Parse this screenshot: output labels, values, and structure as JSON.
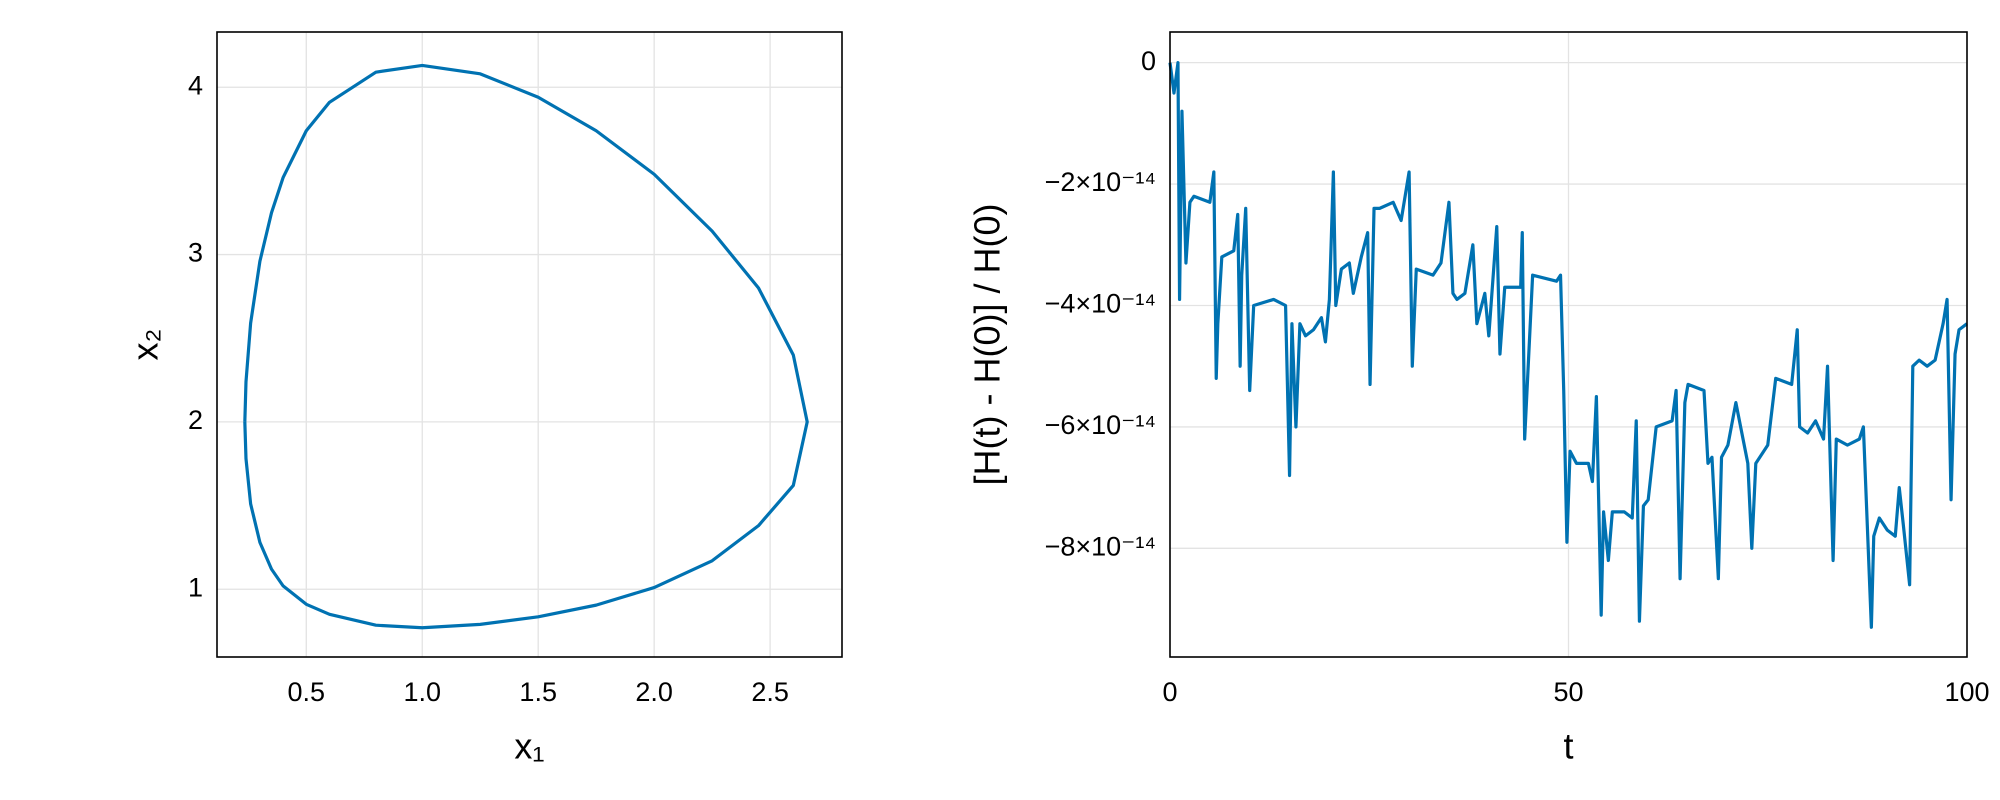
{
  "chart_data": [
    {
      "type": "line",
      "xlabel": "x₁",
      "ylabel": "x₂",
      "color": "#0072b2",
      "grid": true,
      "xlim": [
        0.115,
        2.81
      ],
      "ylim": [
        0.595,
        4.33
      ],
      "xticks": [
        0.5,
        {
          "value": 1,
          "label": "1.0"
        },
        1.5,
        {
          "value": 2,
          "label": "2.0"
        },
        2.5
      ],
      "yticks": [
        1,
        2,
        3,
        4
      ],
      "x": [
        0.235,
        0.24,
        0.26,
        0.3,
        0.35,
        0.4,
        0.5,
        0.6,
        0.8,
        1.0,
        1.25,
        1.5,
        1.75,
        2.0,
        2.25,
        2.45,
        2.6,
        2.66,
        2.6,
        2.45,
        2.25,
        2.0,
        1.75,
        1.5,
        1.25,
        1.0,
        0.8,
        0.6,
        0.5,
        0.4,
        0.35,
        0.3,
        0.26,
        0.24,
        0.235
      ],
      "values": [
        2,
        2.24,
        2.59,
        2.96,
        3.25,
        3.46,
        3.74,
        3.91,
        4.09,
        4.13,
        4.08,
        3.94,
        3.74,
        3.48,
        3.14,
        2.8,
        2.4,
        2,
        1.62,
        1.38,
        1.17,
        1.01,
        0.905,
        0.835,
        0.79,
        0.77,
        0.785,
        0.85,
        0.91,
        1.02,
        1.12,
        1.28,
        1.51,
        1.78,
        2
      ]
    },
    {
      "type": "line",
      "xlabel": "t",
      "ylabel": "[H(t) - H(0)] / H(0)",
      "color": "#0072b2",
      "grid": true,
      "xlim": [
        0,
        100
      ],
      "ylim": [
        -9.79e-14,
        5.05e-15
      ],
      "xticks": [
        0,
        50,
        100
      ],
      "yticks": [
        0,
        {
          "value": -2e-14,
          "label": "−2×10⁻¹⁴"
        },
        {
          "value": -4e-14,
          "label": "−4×10⁻¹⁴"
        },
        {
          "value": -6e-14,
          "label": "−6×10⁻¹⁴"
        },
        {
          "value": -8e-14,
          "label": "−8×10⁻¹⁴"
        }
      ],
      "x": [
        0,
        0.5,
        1,
        1.2,
        1.5,
        2,
        2.5,
        3,
        5,
        5.5,
        5.8,
        6,
        6.5,
        8,
        8.5,
        8.8,
        9,
        9.5,
        10,
        10.5,
        13,
        14.5,
        15,
        15.3,
        15.8,
        16.3,
        17,
        18,
        19,
        19.5,
        20,
        20.5,
        20.8,
        21.5,
        22.5,
        23,
        24,
        24.8,
        25.1,
        25.6,
        26.3,
        28,
        29,
        30,
        30.4,
        30.9,
        33,
        34,
        35,
        35.5,
        36,
        37,
        38,
        38.5,
        39.5,
        40,
        40.5,
        41,
        41.4,
        42,
        44,
        44.2,
        44.5,
        45.5,
        48.5,
        49,
        49.4,
        49.8,
        50.2,
        51,
        52.5,
        53,
        53.5,
        54.1,
        54.4,
        55,
        55.5,
        57,
        58,
        58.5,
        58.9,
        59.4,
        60,
        61,
        63,
        63.5,
        64,
        64.6,
        65,
        67,
        67.5,
        68,
        68.8,
        69.2,
        70,
        71,
        72.5,
        73,
        73.5,
        75,
        76,
        78,
        78.7,
        79,
        80,
        81,
        82,
        82.5,
        83.2,
        83.6,
        85,
        86.5,
        87,
        88,
        88.3,
        89,
        90,
        91,
        91.5,
        92,
        92.8,
        93.2,
        94,
        95,
        96,
        97,
        97.5,
        98,
        98.5,
        99,
        100
      ],
      "values": [
        0,
        -5e-15,
        0,
        -3.9e-14,
        -8e-15,
        -3.3e-14,
        -2.3e-14,
        -2.2e-14,
        -2.3e-14,
        -1.8e-14,
        -5.2e-14,
        -4.3e-14,
        -3.2e-14,
        -3.1e-14,
        -2.5e-14,
        -5e-14,
        -3.5e-14,
        -2.4e-14,
        -5.4e-14,
        -4e-14,
        -3.9e-14,
        -4e-14,
        -6.8e-14,
        -4.3e-14,
        -6e-14,
        -4.3e-14,
        -4.5e-14,
        -4.4e-14,
        -4.2e-14,
        -4.6e-14,
        -3.9e-14,
        -1.8e-14,
        -4e-14,
        -3.4e-14,
        -3.3e-14,
        -3.8e-14,
        -3.2e-14,
        -2.8e-14,
        -5.3e-14,
        -2.4e-14,
        -2.4e-14,
        -2.3e-14,
        -2.6e-14,
        -1.8e-14,
        -5e-14,
        -3.4e-14,
        -3.5e-14,
        -3.3e-14,
        -2.3e-14,
        -3.8e-14,
        -3.9e-14,
        -3.8e-14,
        -3e-14,
        -4.3e-14,
        -3.8e-14,
        -4.5e-14,
        -3.6e-14,
        -2.7e-14,
        -4.8e-14,
        -3.7e-14,
        -3.7e-14,
        -2.8e-14,
        -6.2e-14,
        -3.5e-14,
        -3.6e-14,
        -3.5e-14,
        -5.4e-14,
        -7.9e-14,
        -6.4e-14,
        -6.6e-14,
        -6.6e-14,
        -6.9e-14,
        -5.5e-14,
        -9.1e-14,
        -7.4e-14,
        -8.2e-14,
        -7.4e-14,
        -7.4e-14,
        -7.5e-14,
        -5.9e-14,
        -9.2e-14,
        -7.3e-14,
        -7.2e-14,
        -6e-14,
        -5.9e-14,
        -5.4e-14,
        -8.5e-14,
        -5.6e-14,
        -5.3e-14,
        -5.4e-14,
        -6.6e-14,
        -6.5e-14,
        -8.5e-14,
        -6.5e-14,
        -6.3e-14,
        -5.6e-14,
        -6.6e-14,
        -8e-14,
        -6.6e-14,
        -6.3e-14,
        -5.2e-14,
        -5.3e-14,
        -4.4e-14,
        -6e-14,
        -6.1e-14,
        -5.9e-14,
        -6.2e-14,
        -5e-14,
        -8.2e-14,
        -6.2e-14,
        -6.3e-14,
        -6.2e-14,
        -6e-14,
        -9.3e-14,
        -7.8e-14,
        -7.5e-14,
        -7.7e-14,
        -7.8e-14,
        -7e-14,
        -7.6e-14,
        -8.6e-14,
        -5e-14,
        -4.9e-14,
        -5e-14,
        -4.9e-14,
        -4.3e-14,
        -3.9e-14,
        -7.2e-14,
        -4.8e-14,
        -4.4e-14,
        -4.3e-14
      ]
    }
  ]
}
